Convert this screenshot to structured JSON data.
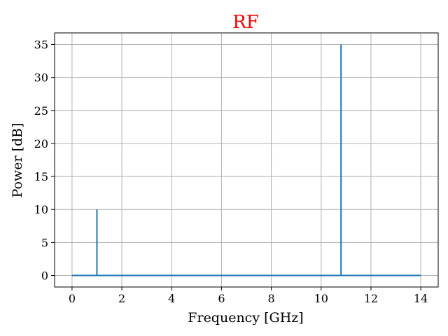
{
  "chart_data": {
    "type": "line",
    "title": "RF",
    "title_color": "#ff0000",
    "xlabel": "Frequency [GHz]",
    "ylabel": "Power [dB]",
    "xlim": [
      -0.7,
      14.7
    ],
    "ylim": [
      -1.75,
      36.75
    ],
    "xticks": [
      0,
      2,
      4,
      6,
      8,
      10,
      12,
      14
    ],
    "yticks": [
      0,
      5,
      10,
      15,
      20,
      25,
      30,
      35
    ],
    "grid": true,
    "series": [
      {
        "color": "#1f77b4",
        "x": [
          0,
          1,
          1,
          1,
          1,
          10.8,
          10.8,
          10.8,
          10.8,
          14
        ],
        "y": [
          0,
          0,
          10,
          10,
          0,
          0,
          35,
          35,
          0,
          0
        ]
      }
    ]
  }
}
